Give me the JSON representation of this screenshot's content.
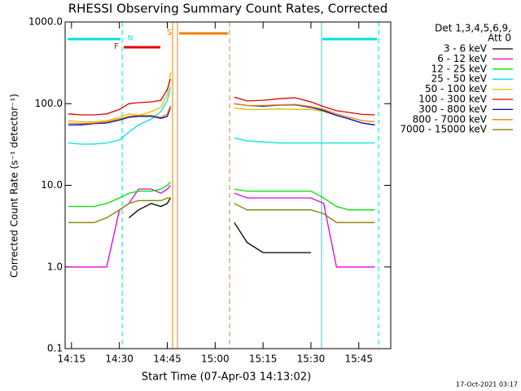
{
  "chart_data": {
    "type": "line",
    "title": "RHESSI Observing Summary Count Rates, Corrected",
    "x_label": "Start Time (07-Apr-03 14:13:02)",
    "y_label": "Corrected Count Rate (s⁻¹ detector⁻¹)",
    "legend_title": [
      "Det 1,3,4,5,6,9,",
      "Att 0"
    ],
    "footer": "17-Oct-2021 03:17",
    "annotations": [
      "N",
      "F",
      "S"
    ],
    "log_y": true,
    "xlim": [
      "14:13",
      "15:55"
    ],
    "xticks": [
      "14:15",
      "14:30",
      "14:45",
      "15:00",
      "15:15",
      "15:30",
      "15:45"
    ],
    "ylim": [
      0.1,
      1000
    ],
    "yticks": [
      0.1,
      {
        "value": 1,
        "label": "1.0"
      },
      {
        "value": 10,
        "label": "10.0"
      },
      {
        "value": 100,
        "label": "100.0"
      },
      {
        "value": 1000,
        "label": "1000.0"
      }
    ],
    "x": [
      "14:14",
      "14:18",
      "14:22",
      "14:26",
      "14:30",
      "14:33",
      "14:36",
      "14:40",
      "14:43",
      "14:45",
      "14:46",
      "14:55",
      "15:06",
      "15:10",
      "15:15",
      "15:20",
      "15:25",
      "15:30",
      "15:34",
      "15:38",
      "15:42",
      "15:46",
      "15:50"
    ],
    "series": [
      {
        "name": "3 - 6 keV",
        "color": "#000000",
        "values": [
          null,
          null,
          null,
          null,
          null,
          4,
          5,
          6,
          5.5,
          6,
          7,
          null,
          3.5,
          2,
          1.5,
          1.5,
          1.5,
          1.5,
          null,
          null,
          null,
          null,
          null
        ]
      },
      {
        "name": "6 - 12 keV",
        "color": "#e000e0",
        "values": [
          1,
          1,
          1,
          1,
          5,
          6,
          9,
          9,
          8,
          9,
          10,
          null,
          8,
          7,
          7,
          7,
          7,
          7,
          6,
          1,
          1,
          1,
          1
        ]
      },
      {
        "name": "12 - 25 keV",
        "color": "#00e000",
        "values": [
          5.5,
          5.5,
          5.5,
          6,
          7,
          8,
          8.5,
          8.5,
          9,
          10,
          11,
          null,
          9,
          8.5,
          8.5,
          8.5,
          8.5,
          8.5,
          7,
          5.5,
          5,
          5,
          5
        ]
      },
      {
        "name": "25 - 50 keV",
        "color": "#00e0e0",
        "values": [
          33,
          32,
          32,
          33,
          36,
          45,
          55,
          65,
          80,
          110,
          160,
          null,
          38,
          35,
          34,
          33,
          33,
          33,
          33,
          33,
          33,
          33,
          33
        ]
      },
      {
        "name": "50 - 100 keV",
        "color": "#e0c000",
        "values": [
          62,
          60,
          60,
          62,
          68,
          75,
          72,
          80,
          90,
          130,
          240,
          null,
          88,
          85,
          85,
          86,
          85,
          85,
          80,
          72,
          65,
          58,
          55
        ]
      },
      {
        "name": "100 - 300 keV",
        "color": "#e00000",
        "values": [
          75,
          73,
          73,
          75,
          85,
          100,
          103,
          105,
          110,
          150,
          200,
          null,
          120,
          108,
          110,
          115,
          118,
          105,
          92,
          82,
          78,
          74,
          73
        ]
      },
      {
        "name": "300 - 800 keV",
        "color": "#0000c0",
        "values": [
          55,
          55,
          57,
          58,
          63,
          68,
          70,
          70,
          66,
          70,
          90,
          null,
          100,
          95,
          93,
          96,
          97,
          90,
          82,
          72,
          65,
          58,
          55
        ]
      },
      {
        "name": "800 - 7000 keV",
        "color": "#f08000",
        "values": [
          58,
          57,
          58,
          60,
          65,
          70,
          72,
          72,
          68,
          75,
          95,
          null,
          100,
          95,
          95,
          97,
          98,
          92,
          85,
          75,
          68,
          62,
          60
        ]
      },
      {
        "name": "7000 - 15000 keV",
        "color": "#808000",
        "values": [
          3.5,
          3.5,
          3.5,
          4,
          5,
          6,
          6.5,
          6.5,
          6.5,
          7,
          7,
          null,
          6,
          5,
          5,
          5,
          5,
          5,
          4.5,
          3.5,
          3.5,
          3.5,
          3.5
        ]
      }
    ]
  }
}
